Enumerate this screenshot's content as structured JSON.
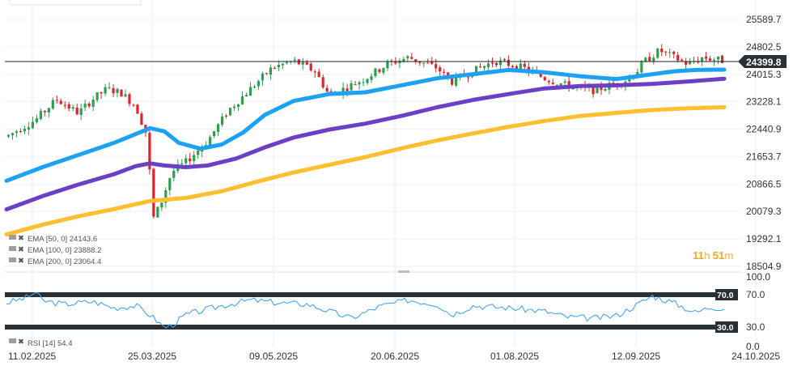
{
  "chart_data": {
    "type": "candlestick",
    "x_ticks": [
      "11.02.2025",
      "25.03.2025",
      "09.05.2025",
      "20.06.2025",
      "01.08.2025",
      "12.09.2025",
      "24.10.2025"
    ],
    "y_ticks": [
      "25589.7",
      "24802.5",
      "24015.3",
      "23228.1",
      "22440.9",
      "21653.7",
      "20866.5",
      "20079.3",
      "19292.1",
      "18504.9"
    ],
    "ylim": [
      18504.9,
      25589.7
    ],
    "last_price": "24399.8",
    "countdown": {
      "hours": "11",
      "h": "h",
      "minutes": "51",
      "m": "m"
    },
    "legend": [
      {
        "name": "EMA",
        "params": "[50, 0]",
        "value": "24143.6",
        "color": "#1da1f2"
      },
      {
        "name": "EMA",
        "params": "[100, 0]",
        "value": "23888.2",
        "color": "#6c3fc4"
      },
      {
        "name": "EMA",
        "params": "[200, 0]",
        "value": "23064.4",
        "color": "#ffbf2e"
      }
    ],
    "ema_series": [
      {
        "params": "[50, 0]",
        "color": "#1da1f2",
        "points": [
          [
            0.0,
            20960
          ],
          [
            0.05,
            21350
          ],
          [
            0.1,
            21700
          ],
          [
            0.15,
            22050
          ],
          [
            0.18,
            22300
          ],
          [
            0.2,
            22470
          ],
          [
            0.22,
            22380
          ],
          [
            0.24,
            22050
          ],
          [
            0.27,
            21880
          ],
          [
            0.3,
            22000
          ],
          [
            0.33,
            22350
          ],
          [
            0.36,
            22850
          ],
          [
            0.4,
            23250
          ],
          [
            0.45,
            23450
          ],
          [
            0.5,
            23500
          ],
          [
            0.55,
            23700
          ],
          [
            0.6,
            23900
          ],
          [
            0.65,
            24020
          ],
          [
            0.7,
            24140
          ],
          [
            0.75,
            24070
          ],
          [
            0.8,
            23960
          ],
          [
            0.85,
            23880
          ],
          [
            0.9,
            24020
          ],
          [
            0.93,
            24100
          ],
          [
            0.96,
            24140
          ],
          [
            1.0,
            24150
          ]
        ]
      },
      {
        "params": "[100, 0]",
        "color": "#6c3fc4",
        "points": [
          [
            0.0,
            20140
          ],
          [
            0.05,
            20520
          ],
          [
            0.1,
            20850
          ],
          [
            0.15,
            21150
          ],
          [
            0.18,
            21380
          ],
          [
            0.2,
            21460
          ],
          [
            0.22,
            21400
          ],
          [
            0.25,
            21350
          ],
          [
            0.28,
            21400
          ],
          [
            0.32,
            21600
          ],
          [
            0.36,
            21920
          ],
          [
            0.4,
            22200
          ],
          [
            0.45,
            22430
          ],
          [
            0.5,
            22600
          ],
          [
            0.55,
            22820
          ],
          [
            0.6,
            23070
          ],
          [
            0.65,
            23280
          ],
          [
            0.7,
            23450
          ],
          [
            0.75,
            23610
          ],
          [
            0.8,
            23680
          ],
          [
            0.85,
            23700
          ],
          [
            0.9,
            23740
          ],
          [
            0.95,
            23810
          ],
          [
            1.0,
            23890
          ]
        ]
      },
      {
        "params": "[200, 0]",
        "color": "#ffbf2e",
        "points": [
          [
            0.0,
            19420
          ],
          [
            0.05,
            19700
          ],
          [
            0.1,
            19940
          ],
          [
            0.15,
            20150
          ],
          [
            0.2,
            20380
          ],
          [
            0.25,
            20470
          ],
          [
            0.3,
            20660
          ],
          [
            0.35,
            20940
          ],
          [
            0.4,
            21200
          ],
          [
            0.45,
            21420
          ],
          [
            0.5,
            21640
          ],
          [
            0.55,
            21890
          ],
          [
            0.6,
            22120
          ],
          [
            0.65,
            22320
          ],
          [
            0.7,
            22510
          ],
          [
            0.75,
            22680
          ],
          [
            0.8,
            22820
          ],
          [
            0.85,
            22910
          ],
          [
            0.9,
            22990
          ],
          [
            0.95,
            23040
          ],
          [
            1.0,
            23070
          ]
        ]
      }
    ],
    "price_path": [
      [
        0.0,
        22230
      ],
      [
        0.04,
        22700
      ],
      [
        0.07,
        23300
      ],
      [
        0.1,
        22900
      ],
      [
        0.12,
        23300
      ],
      [
        0.14,
        23600
      ],
      [
        0.16,
        23480
      ],
      [
        0.18,
        23100
      ],
      [
        0.195,
        22300
      ],
      [
        0.205,
        19900
      ],
      [
        0.215,
        20300
      ],
      [
        0.23,
        21200
      ],
      [
        0.25,
        21500
      ],
      [
        0.28,
        22100
      ],
      [
        0.31,
        23000
      ],
      [
        0.34,
        23600
      ],
      [
        0.37,
        24200
      ],
      [
        0.4,
        24400
      ],
      [
        0.43,
        24100
      ],
      [
        0.45,
        23400
      ],
      [
        0.47,
        23600
      ],
      [
        0.5,
        23900
      ],
      [
        0.53,
        24300
      ],
      [
        0.56,
        24500
      ],
      [
        0.6,
        24200
      ],
      [
        0.62,
        23800
      ],
      [
        0.65,
        24100
      ],
      [
        0.68,
        24400
      ],
      [
        0.72,
        24200
      ],
      [
        0.75,
        23900
      ],
      [
        0.78,
        23700
      ],
      [
        0.8,
        23600
      ],
      [
        0.82,
        23550
      ],
      [
        0.84,
        23700
      ],
      [
        0.87,
        23900
      ],
      [
        0.89,
        24400
      ],
      [
        0.91,
        24700
      ],
      [
        0.93,
        24500
      ],
      [
        0.95,
        24300
      ],
      [
        0.97,
        24500
      ],
      [
        1.0,
        24400
      ]
    ],
    "rsi": {
      "label": "RSI",
      "params": "[14]",
      "value": "54.4",
      "color": "#42a5f5",
      "levels": [
        "70.0",
        "30.0"
      ],
      "y_ticks": [
        "100.0",
        "70.0",
        "30.0",
        "0.0"
      ]
    }
  }
}
